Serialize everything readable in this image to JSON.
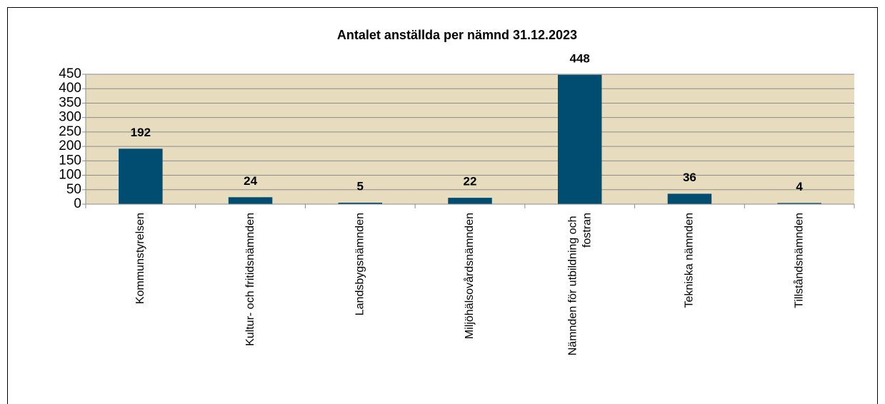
{
  "chart_data": {
    "type": "bar",
    "title": "Antalet anställda per nämnd 31.12.2023",
    "categories": [
      "Kommunstyrelsen",
      "Kultur- och fritidsnämnden",
      "Landsbygsnämnden",
      "Miljöhälsovårdsnämnden",
      "Nämnden för utbildning och fostran",
      "Tekniska nämnden",
      "Tillståndsnämnden"
    ],
    "values": [
      192,
      24,
      5,
      22,
      448,
      36,
      4
    ],
    "color": "#004d71",
    "background": "#e8dcbf",
    "ylim": [
      0,
      450
    ],
    "yticks": [
      0,
      50,
      100,
      150,
      200,
      250,
      300,
      350,
      400,
      450
    ],
    "grid": true
  }
}
